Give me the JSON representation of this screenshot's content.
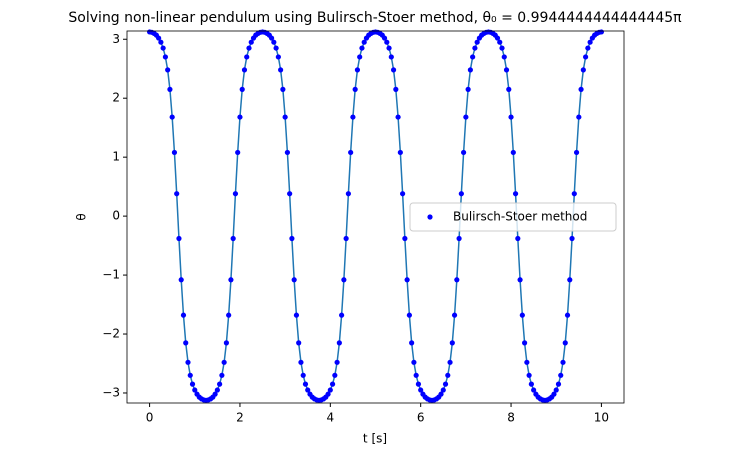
{
  "chart_data": {
    "type": "line_scatter",
    "title": "Solving non-linear pendulum using Bulirsch-Stoer method, θ₀ = 0.9944444444444445π",
    "xlabel": "t [s]",
    "ylabel": "θ",
    "xlim": [
      -0.5,
      10.5
    ],
    "ylim": [
      -3.17,
      3.14
    ],
    "xticks": [
      0,
      2,
      4,
      6,
      8,
      10
    ],
    "yticks": [
      {
        "value": -3,
        "label": "−3"
      },
      {
        "value": -2,
        "label": "−2"
      },
      {
        "value": -1,
        "label": "−1"
      },
      0,
      1,
      2,
      3
    ],
    "legend": "center right",
    "line_color": "#1f77b4",
    "x": [
      0,
      0.05,
      0.1,
      0.15,
      0.2,
      0.25,
      0.3,
      0.35,
      0.4,
      0.45,
      0.5,
      0.55,
      0.6,
      0.65,
      0.7,
      0.75,
      0.8,
      0.85,
      0.9,
      0.95,
      1,
      1.05,
      1.1,
      1.15,
      1.2,
      1.25,
      1.3,
      1.35,
      1.4,
      1.45,
      1.5,
      1.55,
      1.6,
      1.65,
      1.7,
      1.75,
      1.8,
      1.85,
      1.9,
      1.95,
      2,
      2.05,
      2.1,
      2.15,
      2.2,
      2.25,
      2.3,
      2.35,
      2.4,
      2.45,
      2.5,
      2.55,
      2.6,
      2.65,
      2.7,
      2.75,
      2.8,
      2.85,
      2.9,
      2.95,
      3,
      3.05,
      3.1,
      3.15,
      3.2,
      3.25,
      3.3,
      3.35,
      3.4,
      3.45,
      3.5,
      3.55,
      3.6,
      3.65,
      3.7,
      3.75,
      3.8,
      3.85,
      3.9,
      3.95,
      4,
      4.05,
      4.1,
      4.15,
      4.2,
      4.25,
      4.3,
      4.35,
      4.4,
      4.45,
      4.5,
      4.55,
      4.6,
      4.65,
      4.7,
      4.75,
      4.8,
      4.85,
      4.9,
      4.95,
      5,
      5.05,
      5.1,
      5.15,
      5.2,
      5.25,
      5.3,
      5.35,
      5.4,
      5.45,
      5.5,
      5.55,
      5.6,
      5.65,
      5.7,
      5.75,
      5.8,
      5.85,
      5.9,
      5.95,
      6,
      6.05,
      6.1,
      6.15,
      6.2,
      6.25,
      6.3,
      6.35,
      6.4,
      6.45,
      6.5,
      6.55,
      6.6,
      6.65,
      6.7,
      6.75,
      6.8,
      6.85,
      6.9,
      6.95,
      7,
      7.05,
      7.1,
      7.15,
      7.2,
      7.25,
      7.3,
      7.35,
      7.4,
      7.45,
      7.5,
      7.55,
      7.6,
      7.65,
      7.7,
      7.75,
      7.8,
      7.85,
      7.9,
      7.95,
      8,
      8.05,
      8.1,
      8.15,
      8.2,
      8.25,
      8.3,
      8.35,
      8.4,
      8.45,
      8.5,
      8.55,
      8.6,
      8.65,
      8.7,
      8.75,
      8.8,
      8.85,
      8.9,
      8.95,
      9,
      9.05,
      9.1,
      9.15,
      9.2,
      9.25,
      9.3,
      9.35,
      9.4,
      9.45,
      9.5,
      9.55,
      9.6,
      9.65,
      9.7,
      9.75,
      9.8,
      9.85,
      9.9,
      9.95,
      10
    ],
    "series": [
      {
        "name": "Bulirsch-Stoer method",
        "color": "#0000ff",
        "values": [
          3.124,
          3.118,
          3.1,
          3.07,
          3.02,
          2.95,
          2.85,
          2.7,
          2.48,
          2.15,
          1.68,
          1.08,
          0.38,
          -0.38,
          -1.08,
          -1.68,
          -2.15,
          -2.48,
          -2.7,
          -2.85,
          -2.95,
          -3.02,
          -3.07,
          -3.1,
          -3.118,
          -3.124,
          -3.118,
          -3.1,
          -3.07,
          -3.02,
          -2.95,
          -2.85,
          -2.7,
          -2.48,
          -2.15,
          -1.68,
          -1.08,
          -0.38,
          0.38,
          1.08,
          1.68,
          2.15,
          2.48,
          2.7,
          2.85,
          2.95,
          3.02,
          3.07,
          3.1,
          3.118,
          3.124,
          3.118,
          3.1,
          3.07,
          3.02,
          2.95,
          2.85,
          2.7,
          2.48,
          2.15,
          1.68,
          1.08,
          0.38,
          -0.38,
          -1.08,
          -1.68,
          -2.15,
          -2.48,
          -2.7,
          -2.85,
          -2.95,
          -3.02,
          -3.07,
          -3.1,
          -3.118,
          -3.124,
          -3.118,
          -3.1,
          -3.07,
          -3.02,
          -2.95,
          -2.85,
          -2.7,
          -2.48,
          -2.15,
          -1.68,
          -1.08,
          -0.38,
          0.38,
          1.08,
          1.68,
          2.15,
          2.48,
          2.7,
          2.85,
          2.95,
          3.02,
          3.07,
          3.1,
          3.118,
          3.124,
          3.118,
          3.1,
          3.07,
          3.02,
          2.95,
          2.85,
          2.7,
          2.48,
          2.15,
          1.68,
          1.08,
          0.38,
          -0.38,
          -1.08,
          -1.68,
          -2.15,
          -2.48,
          -2.7,
          -2.85,
          -2.95,
          -3.02,
          -3.07,
          -3.1,
          -3.118,
          -3.124,
          -3.118,
          -3.1,
          -3.07,
          -3.02,
          -2.95,
          -2.85,
          -2.7,
          -2.48,
          -2.15,
          -1.68,
          -1.08,
          -0.38,
          0.38,
          1.08,
          1.68,
          2.15,
          2.48,
          2.7,
          2.85,
          2.95,
          3.02,
          3.07,
          3.1,
          3.118,
          3.124,
          3.118,
          3.1,
          3.07,
          3.02,
          2.95,
          2.85,
          2.7,
          2.48,
          2.15,
          1.68,
          1.08,
          0.38,
          -0.38,
          -1.08,
          -1.68,
          -2.15,
          -2.48,
          -2.7,
          -2.85,
          -2.95,
          -3.02,
          -3.07,
          -3.1,
          -3.118,
          -3.124,
          -3.118,
          -3.1,
          -3.07,
          -3.02,
          -2.95,
          -2.85,
          -2.7,
          -2.48,
          -2.15,
          -1.68,
          -1.08,
          -0.38,
          0.38,
          1.08,
          1.68,
          2.15,
          2.48,
          2.7,
          2.85,
          2.95,
          3.02,
          3.07,
          3.1,
          3.118,
          3.124
        ]
      }
    ]
  }
}
